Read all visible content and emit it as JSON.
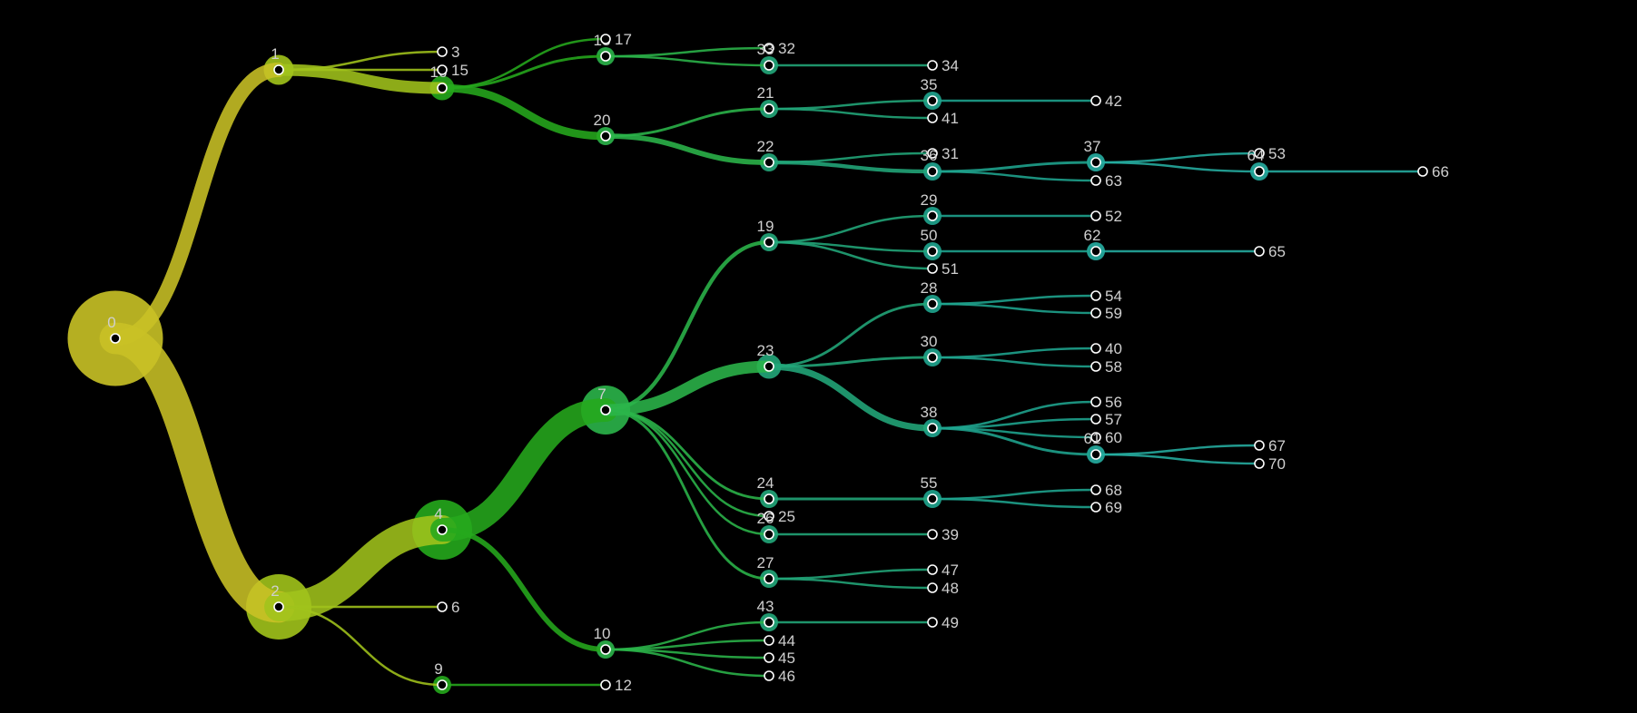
{
  "colors": {
    "background": "#000000",
    "label": "#cfcfcf",
    "marker_fill": "#000000",
    "marker_stroke": "#ffffff",
    "depth_palette": [
      "#c9c226",
      "#a1c31b",
      "#25a81c",
      "#2bb54a",
      "#22a77a",
      "#1fa58f",
      "#26aea2"
    ]
  },
  "tree": {
    "nodes": [
      {
        "id": "0"
      },
      {
        "id": "1",
        "parent": "0"
      },
      {
        "id": "2",
        "parent": "0"
      },
      {
        "id": "3",
        "parent": "1"
      },
      {
        "id": "16",
        "parent": "1"
      },
      {
        "id": "15",
        "parent": "1"
      },
      {
        "id": "4",
        "parent": "2"
      },
      {
        "id": "6",
        "parent": "2"
      },
      {
        "id": "9",
        "parent": "2"
      },
      {
        "id": "18",
        "parent": "16"
      },
      {
        "id": "17",
        "parent": "16"
      },
      {
        "id": "20",
        "parent": "16"
      },
      {
        "id": "7",
        "parent": "4"
      },
      {
        "id": "10",
        "parent": "4"
      },
      {
        "id": "12",
        "parent": "9"
      },
      {
        "id": "32",
        "parent": "18"
      },
      {
        "id": "33",
        "parent": "18"
      },
      {
        "id": "21",
        "parent": "20"
      },
      {
        "id": "22",
        "parent": "20"
      },
      {
        "id": "19",
        "parent": "7"
      },
      {
        "id": "23",
        "parent": "7"
      },
      {
        "id": "24",
        "parent": "7"
      },
      {
        "id": "25",
        "parent": "7"
      },
      {
        "id": "26",
        "parent": "7"
      },
      {
        "id": "27",
        "parent": "7"
      },
      {
        "id": "43",
        "parent": "10"
      },
      {
        "id": "44",
        "parent": "10"
      },
      {
        "id": "45",
        "parent": "10"
      },
      {
        "id": "46",
        "parent": "10"
      },
      {
        "id": "34",
        "parent": "33"
      },
      {
        "id": "35",
        "parent": "21"
      },
      {
        "id": "41",
        "parent": "21"
      },
      {
        "id": "31",
        "parent": "22"
      },
      {
        "id": "36",
        "parent": "22"
      },
      {
        "id": "29",
        "parent": "19"
      },
      {
        "id": "50",
        "parent": "19"
      },
      {
        "id": "51",
        "parent": "19"
      },
      {
        "id": "28",
        "parent": "23"
      },
      {
        "id": "30",
        "parent": "23"
      },
      {
        "id": "38",
        "parent": "23"
      },
      {
        "id": "55",
        "parent": "24"
      },
      {
        "id": "39",
        "parent": "26"
      },
      {
        "id": "47",
        "parent": "27"
      },
      {
        "id": "48",
        "parent": "27"
      },
      {
        "id": "49",
        "parent": "43"
      },
      {
        "id": "42",
        "parent": "35"
      },
      {
        "id": "37",
        "parent": "36"
      },
      {
        "id": "63",
        "parent": "36"
      },
      {
        "id": "52",
        "parent": "29"
      },
      {
        "id": "62",
        "parent": "50"
      },
      {
        "id": "54",
        "parent": "28"
      },
      {
        "id": "59",
        "parent": "28"
      },
      {
        "id": "40",
        "parent": "30"
      },
      {
        "id": "58",
        "parent": "30"
      },
      {
        "id": "56",
        "parent": "38"
      },
      {
        "id": "57",
        "parent": "38"
      },
      {
        "id": "60",
        "parent": "38"
      },
      {
        "id": "61",
        "parent": "38"
      },
      {
        "id": "68",
        "parent": "55"
      },
      {
        "id": "69",
        "parent": "55"
      },
      {
        "id": "53",
        "parent": "37"
      },
      {
        "id": "64",
        "parent": "37"
      },
      {
        "id": "65",
        "parent": "62"
      },
      {
        "id": "67",
        "parent": "61"
      },
      {
        "id": "70",
        "parent": "61"
      },
      {
        "id": "66",
        "parent": "64"
      }
    ]
  }
}
